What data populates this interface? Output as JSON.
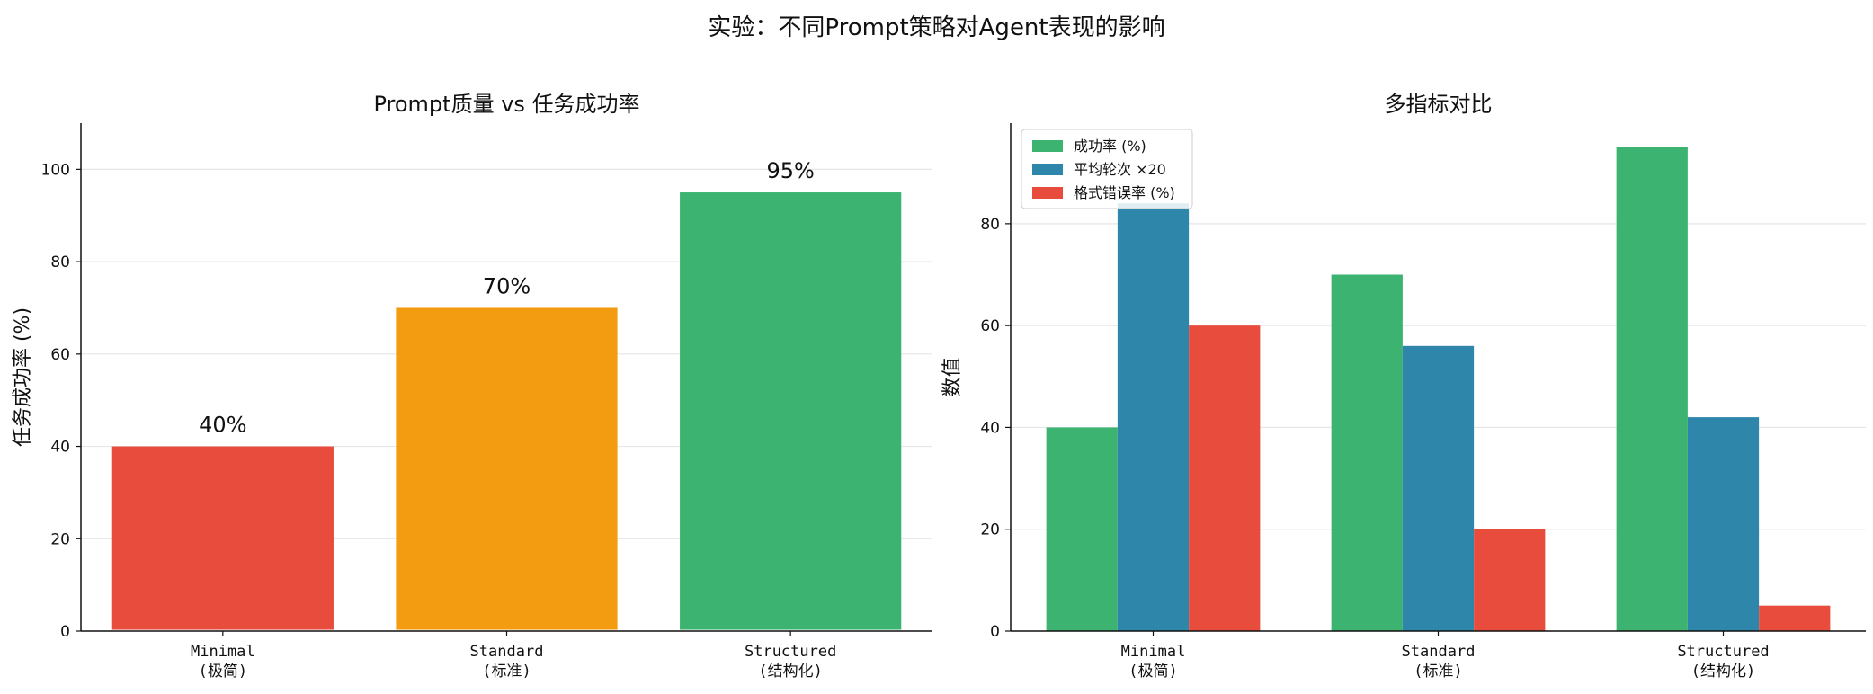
{
  "title": "实验：不同Prompt策略对Agent表现的影响",
  "chart_data": [
    {
      "type": "bar",
      "title": "Prompt质量 vs 任务成功率",
      "categories": [
        [
          "Minimal",
          "(极简)"
        ],
        [
          "Standard",
          "(标准)"
        ],
        [
          "Structured",
          "(结构化)"
        ]
      ],
      "values": [
        40,
        70,
        95
      ],
      "data_labels": [
        "40%",
        "70%",
        "95%"
      ],
      "colors": [
        "#e74c3c",
        "#f39c12",
        "#3cb371"
      ],
      "ylabel": "任务成功率 (%)",
      "ylim": [
        0,
        110
      ],
      "yticks": [
        0,
        20,
        40,
        60,
        80,
        100
      ],
      "grid": "y"
    },
    {
      "type": "bar",
      "title": "多指标对比",
      "categories": [
        [
          "Minimal",
          "(极简)"
        ],
        [
          "Standard",
          "(标准)"
        ],
        [
          "Structured",
          "(结构化)"
        ]
      ],
      "series": [
        {
          "name": "成功率 (%)",
          "values": [
            40,
            70,
            95
          ],
          "color": "#3cb371"
        },
        {
          "name": "平均轮次 ×20",
          "values": [
            84,
            56,
            42
          ],
          "color": "#2e86ab"
        },
        {
          "name": "格式错误率 (%)",
          "values": [
            60,
            20,
            5
          ],
          "color": "#e74c3c"
        }
      ],
      "ylabel": "数值",
      "ylim": [
        0,
        99.75
      ],
      "yticks": [
        0,
        20,
        40,
        60,
        80
      ],
      "grid": "y",
      "legend": "top-left"
    }
  ]
}
